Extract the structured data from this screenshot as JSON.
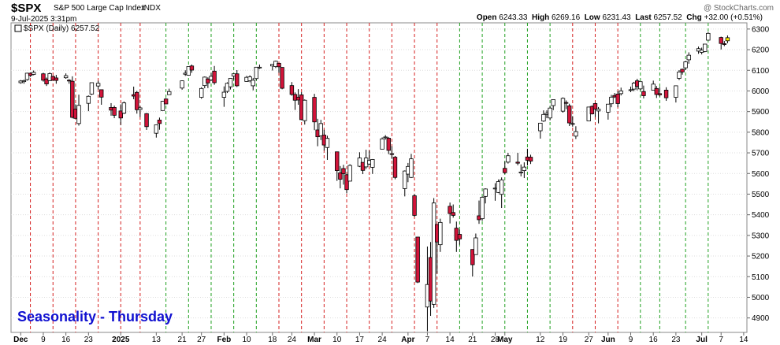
{
  "header": {
    "symbol": "$SPX",
    "name": "S&P 500 Large Cap Index",
    "exchange": "INDX",
    "date_time": "9-Jul-2025 3:31pm",
    "watermark": "@ StockCharts.com",
    "open_label": "Open",
    "open": "6243.33",
    "high_label": "High",
    "high": "6269.16",
    "low_label": "Low",
    "low": "6231.43",
    "last_label": "Last",
    "last": "6257.52",
    "chg_label": "Chg",
    "chg": "+32.00 (+0.51%)",
    "legend": "$SPX (Daily) 6257.52"
  },
  "annotation": "Seasonality - Thursday",
  "colors": {
    "up_fill": "#ffffff",
    "down_fill": "#d2143a",
    "candle_line": "#000000",
    "red_line": "#d52020",
    "green_line": "#20a020",
    "annotation": "#1010d0",
    "last_marker": "#ffee00"
  },
  "chart_data": {
    "type": "candlestick",
    "title": "$SPX S&P 500 Large Cap Index",
    "ylim": [
      4830,
      6330
    ],
    "y_ticks": [
      4900,
      5000,
      5100,
      5200,
      5300,
      5400,
      5500,
      5600,
      5700,
      5800,
      5900,
      6000,
      6100,
      6200,
      6300
    ],
    "x_tick_labels": [
      {
        "date": "2024-12-02",
        "label": "Dec",
        "bold": true
      },
      {
        "date": "2024-12-09",
        "label": "9"
      },
      {
        "date": "2024-12-16",
        "label": "16"
      },
      {
        "date": "2024-12-23",
        "label": "23"
      },
      {
        "date": "2025-01-02",
        "label": "2025",
        "bold": true
      },
      {
        "date": "2025-01-13",
        "label": "13"
      },
      {
        "date": "2025-01-21",
        "label": "21"
      },
      {
        "date": "2025-01-27",
        "label": "27"
      },
      {
        "date": "2025-02-03",
        "label": "Feb",
        "bold": true
      },
      {
        "date": "2025-02-10",
        "label": "10"
      },
      {
        "date": "2025-02-18",
        "label": "18"
      },
      {
        "date": "2025-02-24",
        "label": "24"
      },
      {
        "date": "2025-03-03",
        "label": "Mar",
        "bold": true
      },
      {
        "date": "2025-03-10",
        "label": "10"
      },
      {
        "date": "2025-03-17",
        "label": "17"
      },
      {
        "date": "2025-03-24",
        "label": "24"
      },
      {
        "date": "2025-04-01",
        "label": "Apr",
        "bold": true
      },
      {
        "date": "2025-04-07",
        "label": "7"
      },
      {
        "date": "2025-04-14",
        "label": "14"
      },
      {
        "date": "2025-04-21",
        "label": "21"
      },
      {
        "date": "2025-04-28",
        "label": "28"
      },
      {
        "date": "2025-05-01",
        "label": "May",
        "bold": true
      },
      {
        "date": "2025-05-12",
        "label": "12"
      },
      {
        "date": "2025-05-19",
        "label": "19"
      },
      {
        "date": "2025-05-27",
        "label": "27"
      },
      {
        "date": "2025-06-02",
        "label": "Jun",
        "bold": true
      },
      {
        "date": "2025-06-09",
        "label": "9"
      },
      {
        "date": "2025-06-16",
        "label": "16"
      },
      {
        "date": "2025-06-23",
        "label": "23"
      },
      {
        "date": "2025-07-01",
        "label": "Jul",
        "bold": true
      },
      {
        "date": "2025-07-07",
        "label": "7"
      },
      {
        "date": "2025-07-14",
        "label": "14"
      }
    ],
    "thursday_lines": [
      {
        "date": "2024-12-05",
        "color": "red"
      },
      {
        "date": "2024-12-12",
        "color": "red"
      },
      {
        "date": "2024-12-19",
        "color": "red"
      },
      {
        "date": "2024-12-26",
        "color": "red"
      },
      {
        "date": "2025-01-02",
        "color": "red"
      },
      {
        "date": "2025-01-08",
        "color": "red"
      },
      {
        "date": "2025-01-16",
        "color": "green"
      },
      {
        "date": "2025-01-23",
        "color": "green"
      },
      {
        "date": "2025-01-30",
        "color": "green"
      },
      {
        "date": "2025-02-06",
        "color": "green"
      },
      {
        "date": "2025-02-13",
        "color": "green"
      },
      {
        "date": "2025-02-20",
        "color": "red"
      },
      {
        "date": "2025-02-27",
        "color": "red"
      },
      {
        "date": "2025-03-06",
        "color": "red"
      },
      {
        "date": "2025-03-13",
        "color": "red"
      },
      {
        "date": "2025-03-20",
        "color": "red"
      },
      {
        "date": "2025-03-27",
        "color": "red"
      },
      {
        "date": "2025-04-03",
        "color": "red"
      },
      {
        "date": "2025-04-10",
        "color": "red"
      },
      {
        "date": "2025-04-17",
        "color": "green"
      },
      {
        "date": "2025-04-24",
        "color": "green"
      },
      {
        "date": "2025-05-01",
        "color": "green"
      },
      {
        "date": "2025-05-08",
        "color": "green"
      },
      {
        "date": "2025-05-15",
        "color": "green"
      },
      {
        "date": "2025-05-22",
        "color": "red"
      },
      {
        "date": "2025-05-29",
        "color": "red"
      },
      {
        "date": "2025-06-05",
        "color": "red"
      },
      {
        "date": "2025-06-12",
        "color": "green"
      },
      {
        "date": "2025-06-18",
        "color": "green"
      },
      {
        "date": "2025-06-26",
        "color": "green"
      },
      {
        "date": "2025-07-03",
        "color": "green"
      }
    ],
    "candles": [
      [
        "2024-12-02",
        6040,
        6053,
        6035,
        6048
      ],
      [
        "2024-12-03",
        6045,
        6055,
        6035,
        6050
      ],
      [
        "2024-12-04",
        6055,
        6088,
        6050,
        6086
      ],
      [
        "2024-12-05",
        6086,
        6090,
        6068,
        6075
      ],
      [
        "2024-12-06",
        6080,
        6099,
        6076,
        6090
      ],
      [
        "2024-12-09",
        6083,
        6088,
        6045,
        6052
      ],
      [
        "2024-12-10",
        6058,
        6065,
        6024,
        6034
      ],
      [
        "2024-12-11",
        6050,
        6090,
        6048,
        6084
      ],
      [
        "2024-12-12",
        6070,
        6075,
        6050,
        6052
      ],
      [
        "2024-12-13",
        6063,
        6078,
        6035,
        6051
      ],
      [
        "2024-12-16",
        6064,
        6085,
        6059,
        6074
      ],
      [
        "2024-12-17",
        6052,
        6057,
        6035,
        6050
      ],
      [
        "2024-12-18",
        6047,
        6071,
        5867,
        5872
      ],
      [
        "2024-12-19",
        5912,
        5935,
        5866,
        5867
      ],
      [
        "2024-12-20",
        5842,
        5982,
        5832,
        5930
      ],
      [
        "2024-12-23",
        5940,
        5978,
        5902,
        5974
      ],
      [
        "2024-12-24",
        5985,
        6040,
        5981,
        6040
      ],
      [
        "2024-12-26",
        6024,
        6049,
        6007,
        6037
      ],
      [
        "2024-12-27",
        6006,
        6006,
        5933,
        5970
      ],
      [
        "2024-12-30",
        5920,
        5941,
        5880,
        5907
      ],
      [
        "2024-12-31",
        5920,
        5929,
        5868,
        5882
      ],
      [
        "2025-01-02",
        5903,
        5935,
        5835,
        5869
      ],
      [
        "2025-01-03",
        5892,
        5949,
        5888,
        5942
      ],
      [
        "2025-01-06",
        5982,
        6021,
        5960,
        5975
      ],
      [
        "2025-01-07",
        5993,
        6000,
        5890,
        5909
      ],
      [
        "2025-01-08",
        5910,
        5927,
        5874,
        5918
      ],
      [
        "2025-01-10",
        5890,
        5893,
        5811,
        5827
      ],
      [
        "2025-01-13",
        5795,
        5838,
        5774,
        5836
      ],
      [
        "2025-01-14",
        5859,
        5871,
        5812,
        5842
      ],
      [
        "2025-01-15",
        5905,
        5952,
        5904,
        5950
      ],
      [
        "2025-01-16",
        5961,
        5965,
        5936,
        5937
      ],
      [
        "2025-01-17",
        5982,
        6011,
        5981,
        5997
      ],
      [
        "2025-01-21",
        6014,
        6051,
        6006,
        6049
      ],
      [
        "2025-01-22",
        6081,
        6100,
        6073,
        6086
      ],
      [
        "2025-01-23",
        6076,
        6118,
        6074,
        6118
      ],
      [
        "2025-01-24",
        6121,
        6128,
        6088,
        6101
      ],
      [
        "2025-01-27",
        5969,
        6018,
        5962,
        6012
      ],
      [
        "2025-01-28",
        6026,
        6070,
        6013,
        6067
      ],
      [
        "2025-01-29",
        6058,
        6066,
        6014,
        6039
      ],
      [
        "2025-01-30",
        6054,
        6087,
        6048,
        6071
      ],
      [
        "2025-01-31",
        6096,
        6121,
        6030,
        6040
      ],
      [
        "2025-02-03",
        5969,
        6022,
        5923,
        5994
      ],
      [
        "2025-02-04",
        5998,
        6042,
        5990,
        6037
      ],
      [
        "2025-02-05",
        6020,
        6062,
        6007,
        6061
      ],
      [
        "2025-02-06",
        6072,
        6084,
        6055,
        6083
      ],
      [
        "2025-02-07",
        6083,
        6101,
        6019,
        6025
      ],
      [
        "2025-02-10",
        6046,
        6073,
        6045,
        6066
      ],
      [
        "2025-02-11",
        6049,
        6076,
        6042,
        6068
      ],
      [
        "2025-02-12",
        6025,
        6063,
        6003,
        6052
      ],
      [
        "2025-02-13",
        6060,
        6116,
        6052,
        6115
      ],
      [
        "2025-02-14",
        6115,
        6128,
        6107,
        6115
      ],
      [
        "2025-02-18",
        6121,
        6129,
        6099,
        6129
      ],
      [
        "2025-02-19",
        6118,
        6147,
        6111,
        6144
      ],
      [
        "2025-02-20",
        6134,
        6135,
        6088,
        6117
      ],
      [
        "2025-02-21",
        6114,
        6114,
        6008,
        6013
      ],
      [
        "2025-02-24",
        6026,
        6043,
        5977,
        5983
      ],
      [
        "2025-02-25",
        5983,
        5993,
        5908,
        5955
      ],
      [
        "2025-02-26",
        5970,
        6009,
        5933,
        5956
      ],
      [
        "2025-02-27",
        5981,
        5994,
        5858,
        5861
      ],
      [
        "2025-02-28",
        5856,
        5959,
        5837,
        5955
      ],
      [
        "2025-03-03",
        5969,
        5986,
        5810,
        5850
      ],
      [
        "2025-03-04",
        5811,
        5865,
        5732,
        5778
      ],
      [
        "2025-03-05",
        5782,
        5860,
        5762,
        5842
      ],
      [
        "2025-03-06",
        5786,
        5812,
        5711,
        5738
      ],
      [
        "2025-03-07",
        5726,
        5783,
        5666,
        5770
      ],
      [
        "2025-03-10",
        5705,
        5705,
        5564,
        5614
      ],
      [
        "2025-03-11",
        5603,
        5636,
        5528,
        5572
      ],
      [
        "2025-03-12",
        5624,
        5642,
        5546,
        5599
      ],
      [
        "2025-03-13",
        5594,
        5598,
        5504,
        5522
      ],
      [
        "2025-03-14",
        5563,
        5645,
        5563,
        5639
      ],
      [
        "2025-03-17",
        5635,
        5703,
        5631,
        5675
      ],
      [
        "2025-03-18",
        5654,
        5654,
        5597,
        5615
      ],
      [
        "2025-03-19",
        5632,
        5715,
        5622,
        5675
      ],
      [
        "2025-03-20",
        5646,
        5711,
        5640,
        5663
      ],
      [
        "2025-03-21",
        5630,
        5670,
        5598,
        5668
      ],
      [
        "2025-03-24",
        5718,
        5775,
        5718,
        5768
      ],
      [
        "2025-03-25",
        5775,
        5786,
        5764,
        5777
      ],
      [
        "2025-03-26",
        5771,
        5777,
        5694,
        5712
      ],
      [
        "2025-03-27",
        5696,
        5732,
        5671,
        5693
      ],
      [
        "2025-03-28",
        5679,
        5685,
        5572,
        5581
      ],
      [
        "2025-03-31",
        5527,
        5615,
        5489,
        5612
      ],
      [
        "2025-04-01",
        5597,
        5651,
        5558,
        5634
      ],
      [
        "2025-04-02",
        5581,
        5695,
        5578,
        5671
      ],
      [
        "2025-04-03",
        5492,
        5500,
        5390,
        5397
      ],
      [
        "2025-04-04",
        5292,
        5292,
        5069,
        5074
      ],
      [
        "2025-04-07",
        4953,
        5246,
        4835,
        5062
      ],
      [
        "2025-04-08",
        5193,
        5268,
        4910,
        4982
      ],
      [
        "2025-04-09",
        4966,
        5481,
        4949,
        5457
      ],
      [
        "2025-04-10",
        5353,
        5353,
        5115,
        5268
      ],
      [
        "2025-04-11",
        5255,
        5381,
        5220,
        5363
      ],
      [
        "2025-04-14",
        5441,
        5459,
        5358,
        5406
      ],
      [
        "2025-04-15",
        5411,
        5450,
        5386,
        5397
      ],
      [
        "2025-04-16",
        5335,
        5367,
        5220,
        5276
      ],
      [
        "2025-04-17",
        5305,
        5328,
        5255,
        5283
      ],
      [
        "2025-04-21",
        5232,
        5233,
        5101,
        5158
      ],
      [
        "2025-04-22",
        5207,
        5309,
        5207,
        5288
      ],
      [
        "2025-04-23",
        5395,
        5469,
        5356,
        5376
      ],
      [
        "2025-04-24",
        5381,
        5489,
        5371,
        5485
      ],
      [
        "2025-04-25",
        5489,
        5528,
        5455,
        5525
      ],
      [
        "2025-04-28",
        5529,
        5553,
        5468,
        5529
      ],
      [
        "2025-04-29",
        5508,
        5571,
        5505,
        5561
      ],
      [
        "2025-04-30",
        5499,
        5581,
        5433,
        5569
      ],
      [
        "2025-05-01",
        5625,
        5658,
        5597,
        5604
      ],
      [
        "2025-05-02",
        5655,
        5700,
        5648,
        5686
      ],
      [
        "2025-05-05",
        5655,
        5700,
        5640,
        5650
      ],
      [
        "2025-05-06",
        5606,
        5644,
        5586,
        5607
      ],
      [
        "2025-05-07",
        5614,
        5654,
        5578,
        5631
      ],
      [
        "2025-05-08",
        5680,
        5720,
        5639,
        5664
      ],
      [
        "2025-05-09",
        5679,
        5691,
        5646,
        5660
      ],
      [
        "2025-05-12",
        5807,
        5845,
        5769,
        5844
      ],
      [
        "2025-05-13",
        5854,
        5906,
        5850,
        5886
      ],
      [
        "2025-05-14",
        5886,
        5906,
        5868,
        5892
      ],
      [
        "2025-05-15",
        5869,
        5925,
        5858,
        5917
      ],
      [
        "2025-05-16",
        5929,
        5958,
        5907,
        5958
      ],
      [
        "2025-05-19",
        5902,
        5969,
        5895,
        5964
      ],
      [
        "2025-05-20",
        5944,
        5954,
        5912,
        5940
      ],
      [
        "2025-05-21",
        5928,
        5938,
        5830,
        5845
      ],
      [
        "2025-05-22",
        5841,
        5878,
        5827,
        5842
      ],
      [
        "2025-05-23",
        5781,
        5829,
        5767,
        5803
      ],
      [
        "2025-05-27",
        5855,
        5922,
        5855,
        5922
      ],
      [
        "2025-05-28",
        5925,
        5930,
        5886,
        5889
      ],
      [
        "2025-05-29",
        5939,
        5943,
        5874,
        5912
      ],
      [
        "2025-05-30",
        5903,
        5922,
        5843,
        5912
      ],
      [
        "2025-06-02",
        5897,
        5937,
        5861,
        5936
      ],
      [
        "2025-06-03",
        5938,
        5981,
        5921,
        5970
      ],
      [
        "2025-06-04",
        5978,
        5990,
        5966,
        5971
      ],
      [
        "2025-06-05",
        5985,
        5999,
        5921,
        5939
      ],
      [
        "2025-06-06",
        5987,
        6016,
        5978,
        6000
      ],
      [
        "2025-06-09",
        6004,
        6021,
        5994,
        6006
      ],
      [
        "2025-06-10",
        6009,
        6044,
        5999,
        6038
      ],
      [
        "2025-06-11",
        6049,
        6059,
        6003,
        6022
      ],
      [
        "2025-06-12",
        6010,
        6045,
        6003,
        6045
      ],
      [
        "2025-06-13",
        5997,
        6026,
        5964,
        5977
      ],
      [
        "2025-06-16",
        6004,
        6050,
        6004,
        6033
      ],
      [
        "2025-06-17",
        6012,
        6024,
        5966,
        5983
      ],
      [
        "2025-06-18",
        5987,
        6019,
        5973,
        5981
      ],
      [
        "2025-06-20",
        6004,
        6018,
        5952,
        5967
      ],
      [
        "2025-06-23",
        5969,
        6026,
        5944,
        6025
      ],
      [
        "2025-06-24",
        6061,
        6101,
        6053,
        6092
      ],
      [
        "2025-06-25",
        6105,
        6108,
        6079,
        6092
      ],
      [
        "2025-06-26",
        6112,
        6146,
        6101,
        6141
      ],
      [
        "2025-06-27",
        6151,
        6187,
        6132,
        6173
      ],
      [
        "2025-06-30",
        6193,
        6215,
        6180,
        6205
      ],
      [
        "2025-07-01",
        6187,
        6210,
        6177,
        6198
      ],
      [
        "2025-07-02",
        6191,
        6227,
        6188,
        6227
      ],
      [
        "2025-07-03",
        6246,
        6285,
        6246,
        6279
      ],
      [
        "2025-07-07",
        6259,
        6263,
        6201,
        6230
      ],
      [
        "2025-07-08",
        6229,
        6242,
        6217,
        6225
      ],
      [
        "2025-07-09",
        6243,
        6269,
        6231,
        6258
      ]
    ]
  }
}
